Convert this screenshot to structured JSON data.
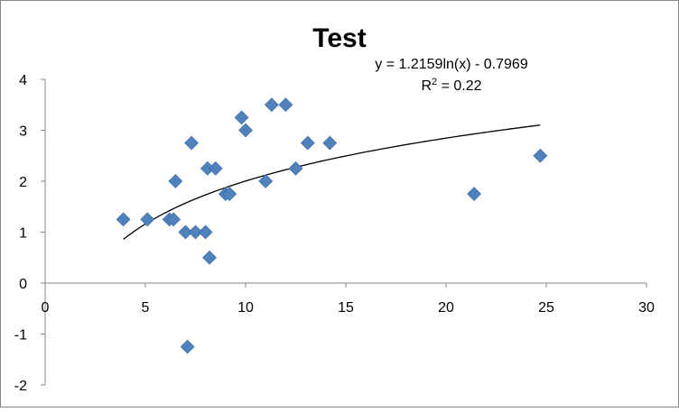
{
  "chart_data": {
    "type": "scatter",
    "title": "Test",
    "xlabel": "",
    "ylabel": "",
    "xlim": [
      0,
      30
    ],
    "ylim": [
      -2,
      4
    ],
    "x_ticks": [
      "0",
      "5",
      "10",
      "15",
      "20",
      "25",
      "30"
    ],
    "y_ticks": [
      "4",
      "3",
      "2",
      "1",
      "0",
      "-1",
      "-2"
    ],
    "grid": false,
    "marker": "diamond",
    "colors": {
      "marker": "#4F81BD",
      "trendline": "#000000"
    },
    "series": [
      {
        "points": [
          {
            "x": 3.9,
            "y": 1.25
          },
          {
            "x": 5.1,
            "y": 1.25
          },
          {
            "x": 6.2,
            "y": 1.25
          },
          {
            "x": 6.4,
            "y": 1.25
          },
          {
            "x": 6.5,
            "y": 2.0
          },
          {
            "x": 7.0,
            "y": 1.0
          },
          {
            "x": 7.1,
            "y": -1.25
          },
          {
            "x": 7.3,
            "y": 2.75
          },
          {
            "x": 7.5,
            "y": 1.0
          },
          {
            "x": 8.0,
            "y": 1.0
          },
          {
            "x": 8.1,
            "y": 2.25
          },
          {
            "x": 8.2,
            "y": 0.5
          },
          {
            "x": 8.5,
            "y": 2.25
          },
          {
            "x": 9.0,
            "y": 1.75
          },
          {
            "x": 9.2,
            "y": 1.75
          },
          {
            "x": 9.8,
            "y": 3.25
          },
          {
            "x": 10.0,
            "y": 3.0
          },
          {
            "x": 11.0,
            "y": 2.0
          },
          {
            "x": 11.3,
            "y": 3.5
          },
          {
            "x": 12.0,
            "y": 3.5
          },
          {
            "x": 12.5,
            "y": 2.25
          },
          {
            "x": 13.1,
            "y": 2.75
          },
          {
            "x": 14.2,
            "y": 2.75
          },
          {
            "x": 21.4,
            "y": 1.75
          },
          {
            "x": 24.7,
            "y": 2.5
          }
        ]
      }
    ],
    "trendline": {
      "type": "logarithmic",
      "a": 1.2159,
      "b": -0.7969,
      "x_range": [
        3.9,
        24.7
      ],
      "equation": "y = 1.2159ln(x) - 0.7969",
      "r2_prefix": "R",
      "r2_sup": "2",
      "r2_suffix": " = 0.22"
    }
  }
}
